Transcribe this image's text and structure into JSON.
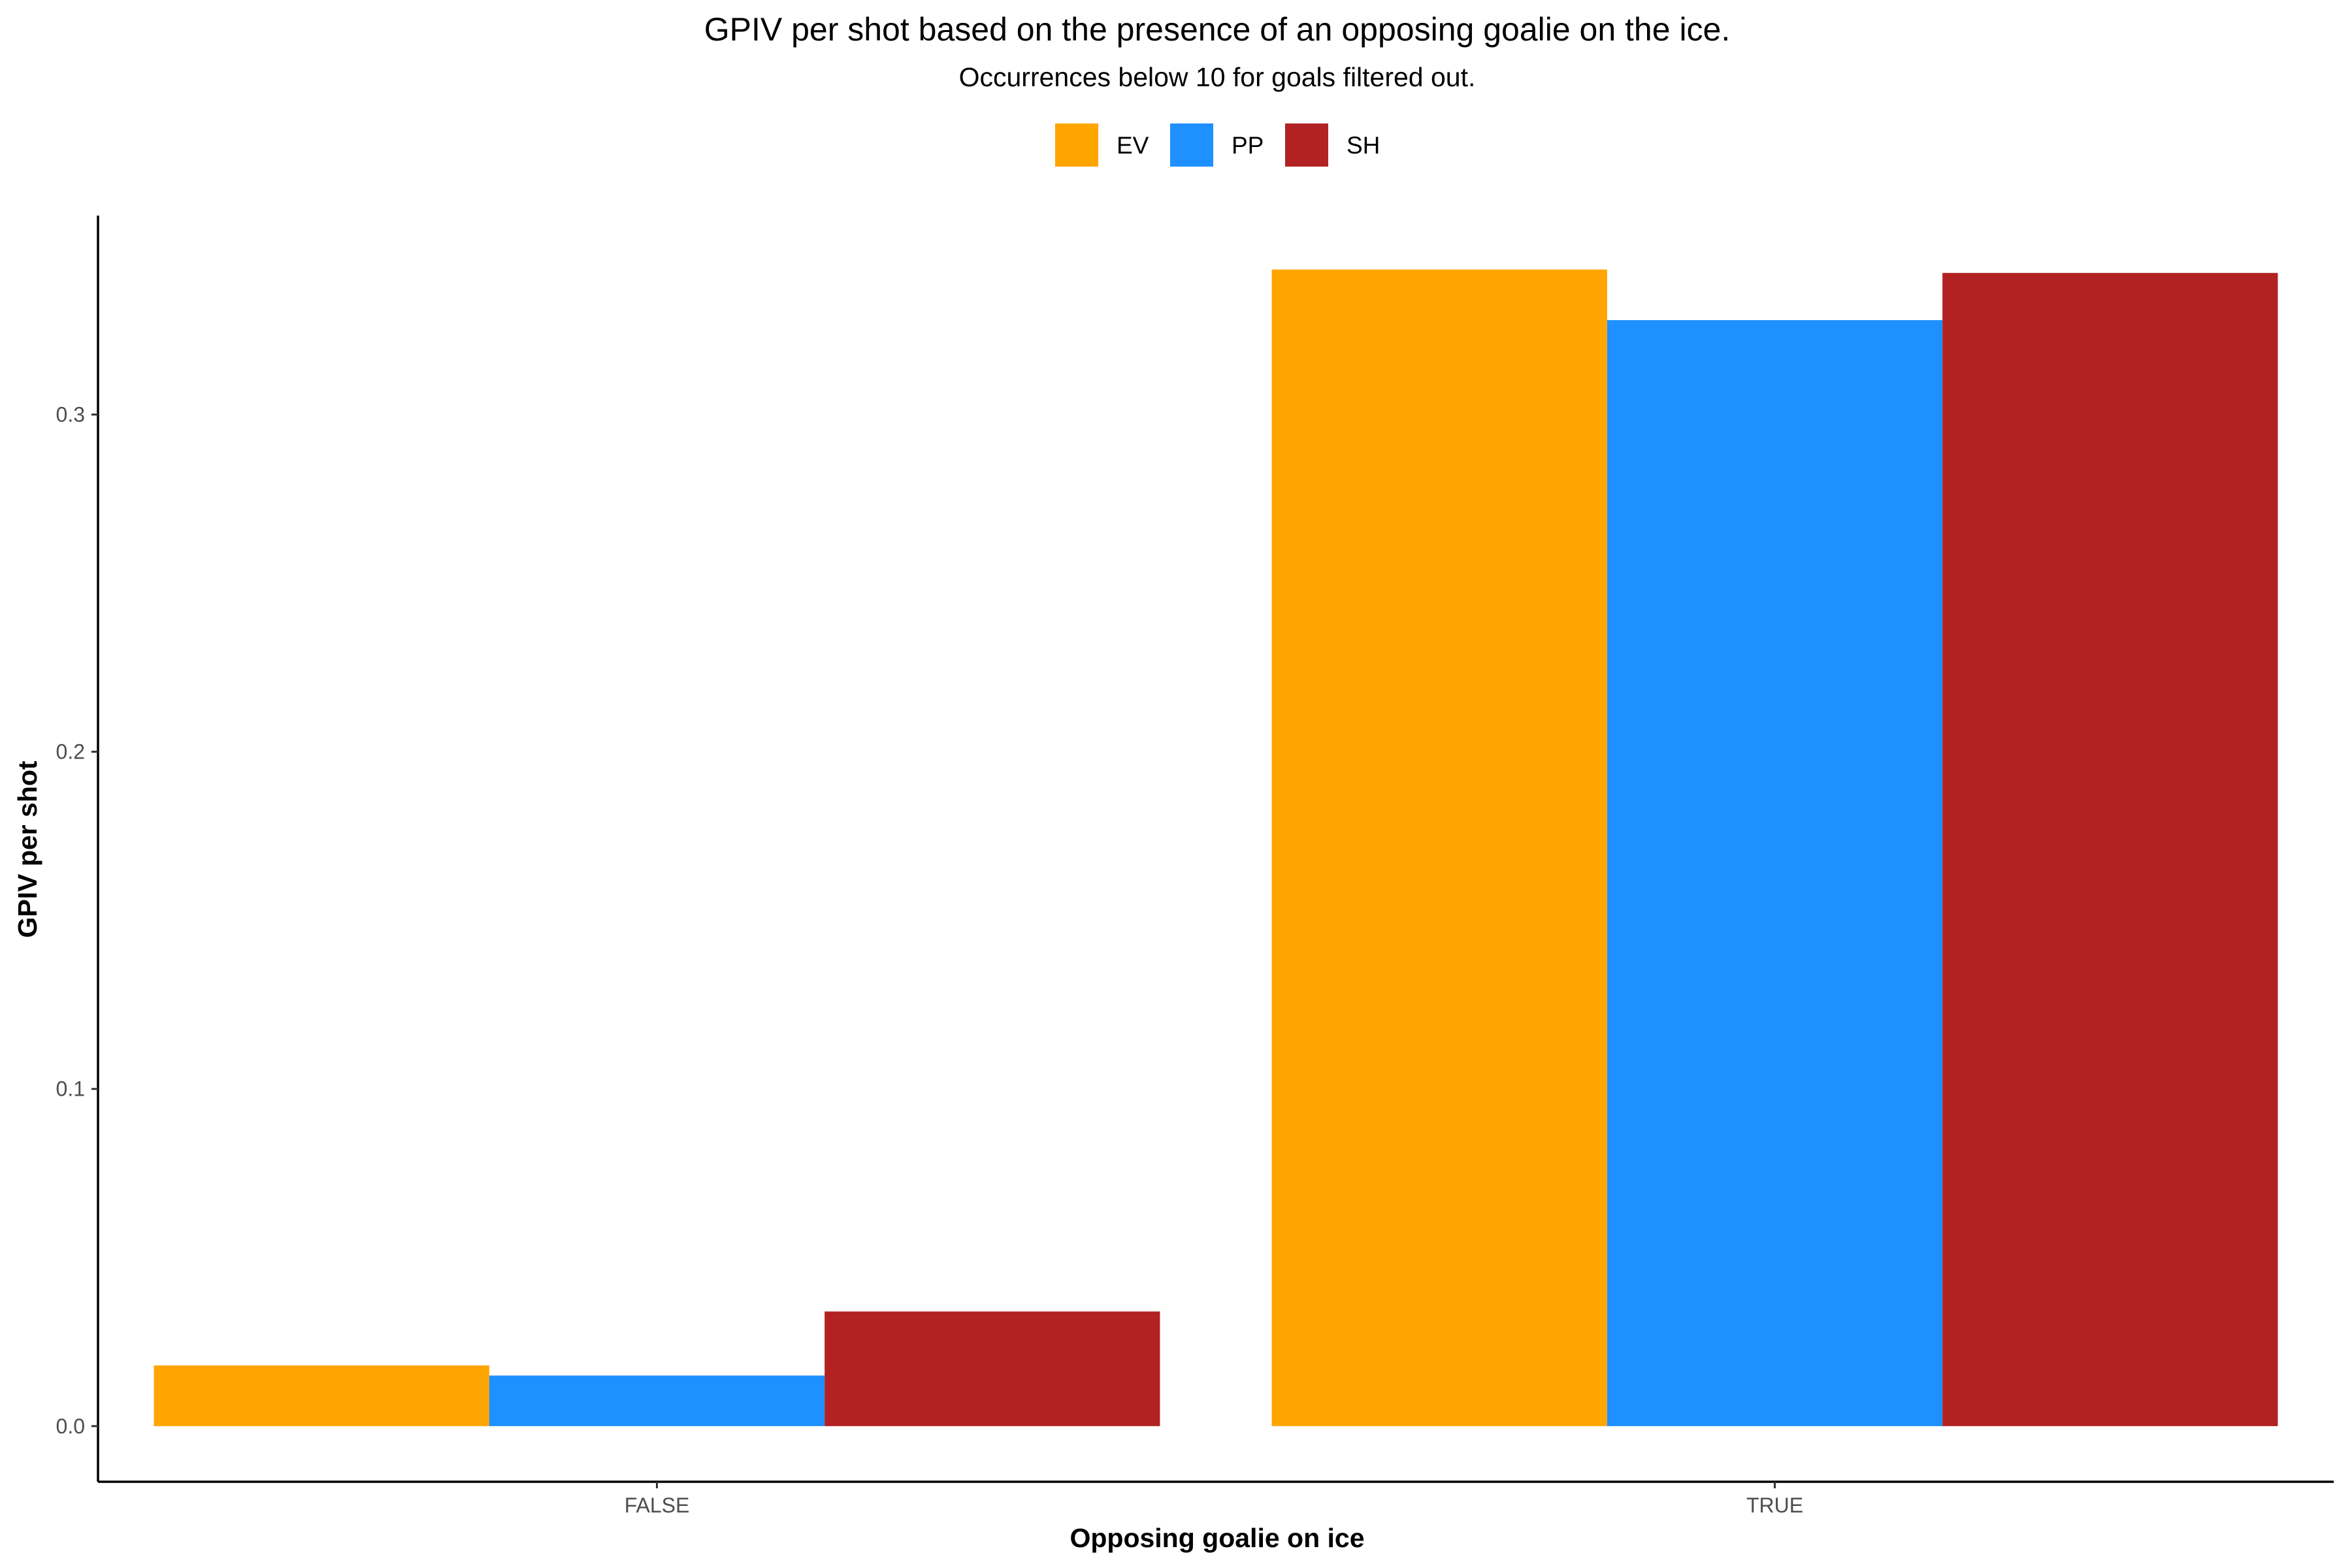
{
  "chart_data": {
    "type": "bar",
    "title": "GPIV per shot based on the presence of an opposing goalie on the ice.",
    "subtitle": "Occurrences below 10 for goals filtered out.",
    "xlabel": "Opposing goalie on ice",
    "ylabel": "GPIV per shot",
    "categories": [
      "FALSE",
      "TRUE"
    ],
    "series": [
      {
        "name": "EV",
        "color": "#FFA500",
        "values": [
          0.018,
          0.343
        ]
      },
      {
        "name": "PP",
        "color": "#1E90FF",
        "values": [
          0.015,
          0.328
        ]
      },
      {
        "name": "SH",
        "color": "#B22222",
        "values": [
          0.034,
          0.342
        ]
      }
    ],
    "ylim": [
      -0.0165,
      0.359
    ],
    "yticks": [
      0.0,
      0.1,
      0.2,
      0.3
    ],
    "ytick_labels": [
      "0.0",
      "0.1",
      "0.2",
      "0.3"
    ],
    "grid": false,
    "legend_position": "top"
  }
}
